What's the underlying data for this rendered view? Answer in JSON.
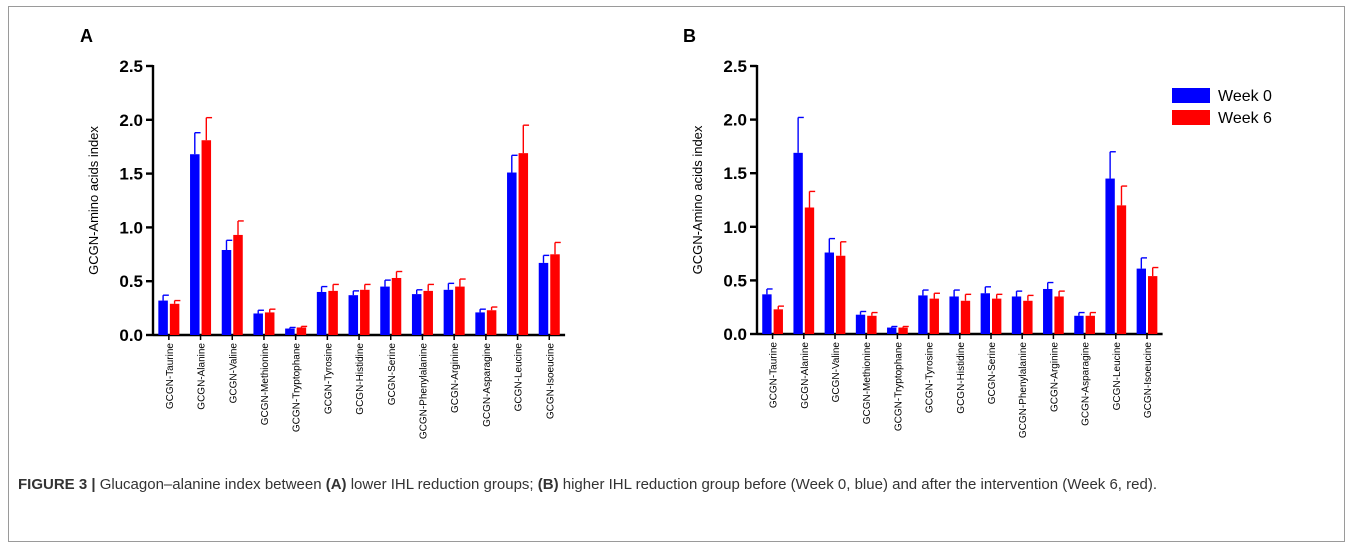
{
  "chart_data": [
    {
      "type": "bar",
      "panel": "A",
      "ylabel": "GCGN-Amino acids index",
      "ylim": [
        0,
        2.5
      ],
      "yticks": [
        "0.0",
        "0.5",
        "1.0",
        "1.5",
        "2.0",
        "2.5"
      ],
      "categories": [
        "GCGN-Taurine",
        "GCGN-Alanine",
        "GCGN-Valine",
        "GCGN-Methionine",
        "GCGN-Tryptophane",
        "GCGN-Tyrosine",
        "GCGN-Histidine",
        "GCGN-Serine",
        "GCGN-Phenylalanine",
        "GCGN-Arginine",
        "GCGN-Asparagine",
        "GCGN-Leucine",
        "GCGN-Isoeucine"
      ],
      "series": [
        {
          "name": "Week 0",
          "color": "#0000ff",
          "values": [
            0.32,
            1.68,
            0.79,
            0.2,
            0.06,
            0.4,
            0.37,
            0.45,
            0.38,
            0.42,
            0.21,
            1.51,
            0.67
          ],
          "errors": [
            0.05,
            0.2,
            0.09,
            0.03,
            0.01,
            0.05,
            0.04,
            0.06,
            0.04,
            0.06,
            0.03,
            0.16,
            0.07
          ]
        },
        {
          "name": "Week 6",
          "color": "#ff0000",
          "values": [
            0.29,
            1.81,
            0.93,
            0.21,
            0.07,
            0.41,
            0.42,
            0.53,
            0.41,
            0.45,
            0.23,
            1.69,
            0.75
          ],
          "errors": [
            0.03,
            0.21,
            0.13,
            0.03,
            0.01,
            0.06,
            0.05,
            0.06,
            0.06,
            0.07,
            0.03,
            0.26,
            0.11
          ]
        }
      ],
      "legend": "none"
    },
    {
      "type": "bar",
      "panel": "B",
      "ylabel": "GCGN-Amino acids index",
      "ylim": [
        0,
        2.5
      ],
      "yticks": [
        "0.0",
        "0.5",
        "1.0",
        "1.5",
        "2.0",
        "2.5"
      ],
      "categories": [
        "GCGN-Taurine",
        "GCGN-Alanine",
        "GCGN-Valine",
        "GCGN-Methionine",
        "GCGN-Tryptophane",
        "GCGN-Tyrosine",
        "GCGN-Histidine",
        "GCGN-Serine",
        "GCGN-Phenylalanine",
        "GCGN-Arginine",
        "GCGN-Asparagine",
        "GCGN-Leucine",
        "GCGN-Isoeucine"
      ],
      "series": [
        {
          "name": "Week 0",
          "color": "#0000ff",
          "values": [
            0.37,
            1.69,
            0.76,
            0.18,
            0.06,
            0.36,
            0.35,
            0.38,
            0.35,
            0.42,
            0.17,
            1.45,
            0.61
          ],
          "errors": [
            0.05,
            0.33,
            0.13,
            0.03,
            0.01,
            0.05,
            0.06,
            0.06,
            0.05,
            0.06,
            0.03,
            0.25,
            0.1
          ]
        },
        {
          "name": "Week 6",
          "color": "#ff0000",
          "values": [
            0.23,
            1.18,
            0.73,
            0.17,
            0.06,
            0.33,
            0.31,
            0.33,
            0.31,
            0.35,
            0.17,
            1.2,
            0.54
          ],
          "errors": [
            0.03,
            0.15,
            0.13,
            0.03,
            0.01,
            0.05,
            0.06,
            0.04,
            0.05,
            0.05,
            0.03,
            0.18,
            0.08
          ]
        }
      ],
      "legend": "top-right"
    }
  ],
  "caption": {
    "label": "FIGURE 3 |",
    "t1": " Glucagon–alanine index between ",
    "b1": "(A)",
    "t2": " lower IHL reduction groups; ",
    "b2": "(B)",
    "t3": " higher IHL reduction group before (Week 0, blue) and after the intervention (Week 6, red)."
  }
}
